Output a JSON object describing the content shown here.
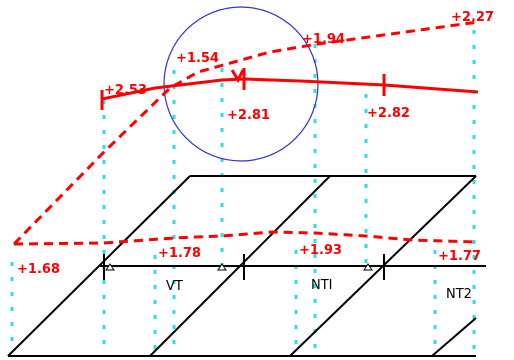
{
  "colors": {
    "elevation": "#ff0000",
    "guide": "#33dddd",
    "circle": "#3333cc",
    "grid": "#000000"
  },
  "elevation_labels": {
    "e_2_27": "+2.27",
    "e_1_94": "+1.94",
    "e_1_54": "+1.54",
    "e_2_53": "+2.53",
    "e_2_81": "+2.81",
    "e_2_82": "+2.82",
    "e_1_68": "+1.68",
    "e_1_78": "+1.78",
    "e_1_93": "+1.93",
    "e_1_77": "+1.77"
  },
  "zone_labels": {
    "vt": "VT",
    "nti": "NTI",
    "nt2": "NT2"
  }
}
